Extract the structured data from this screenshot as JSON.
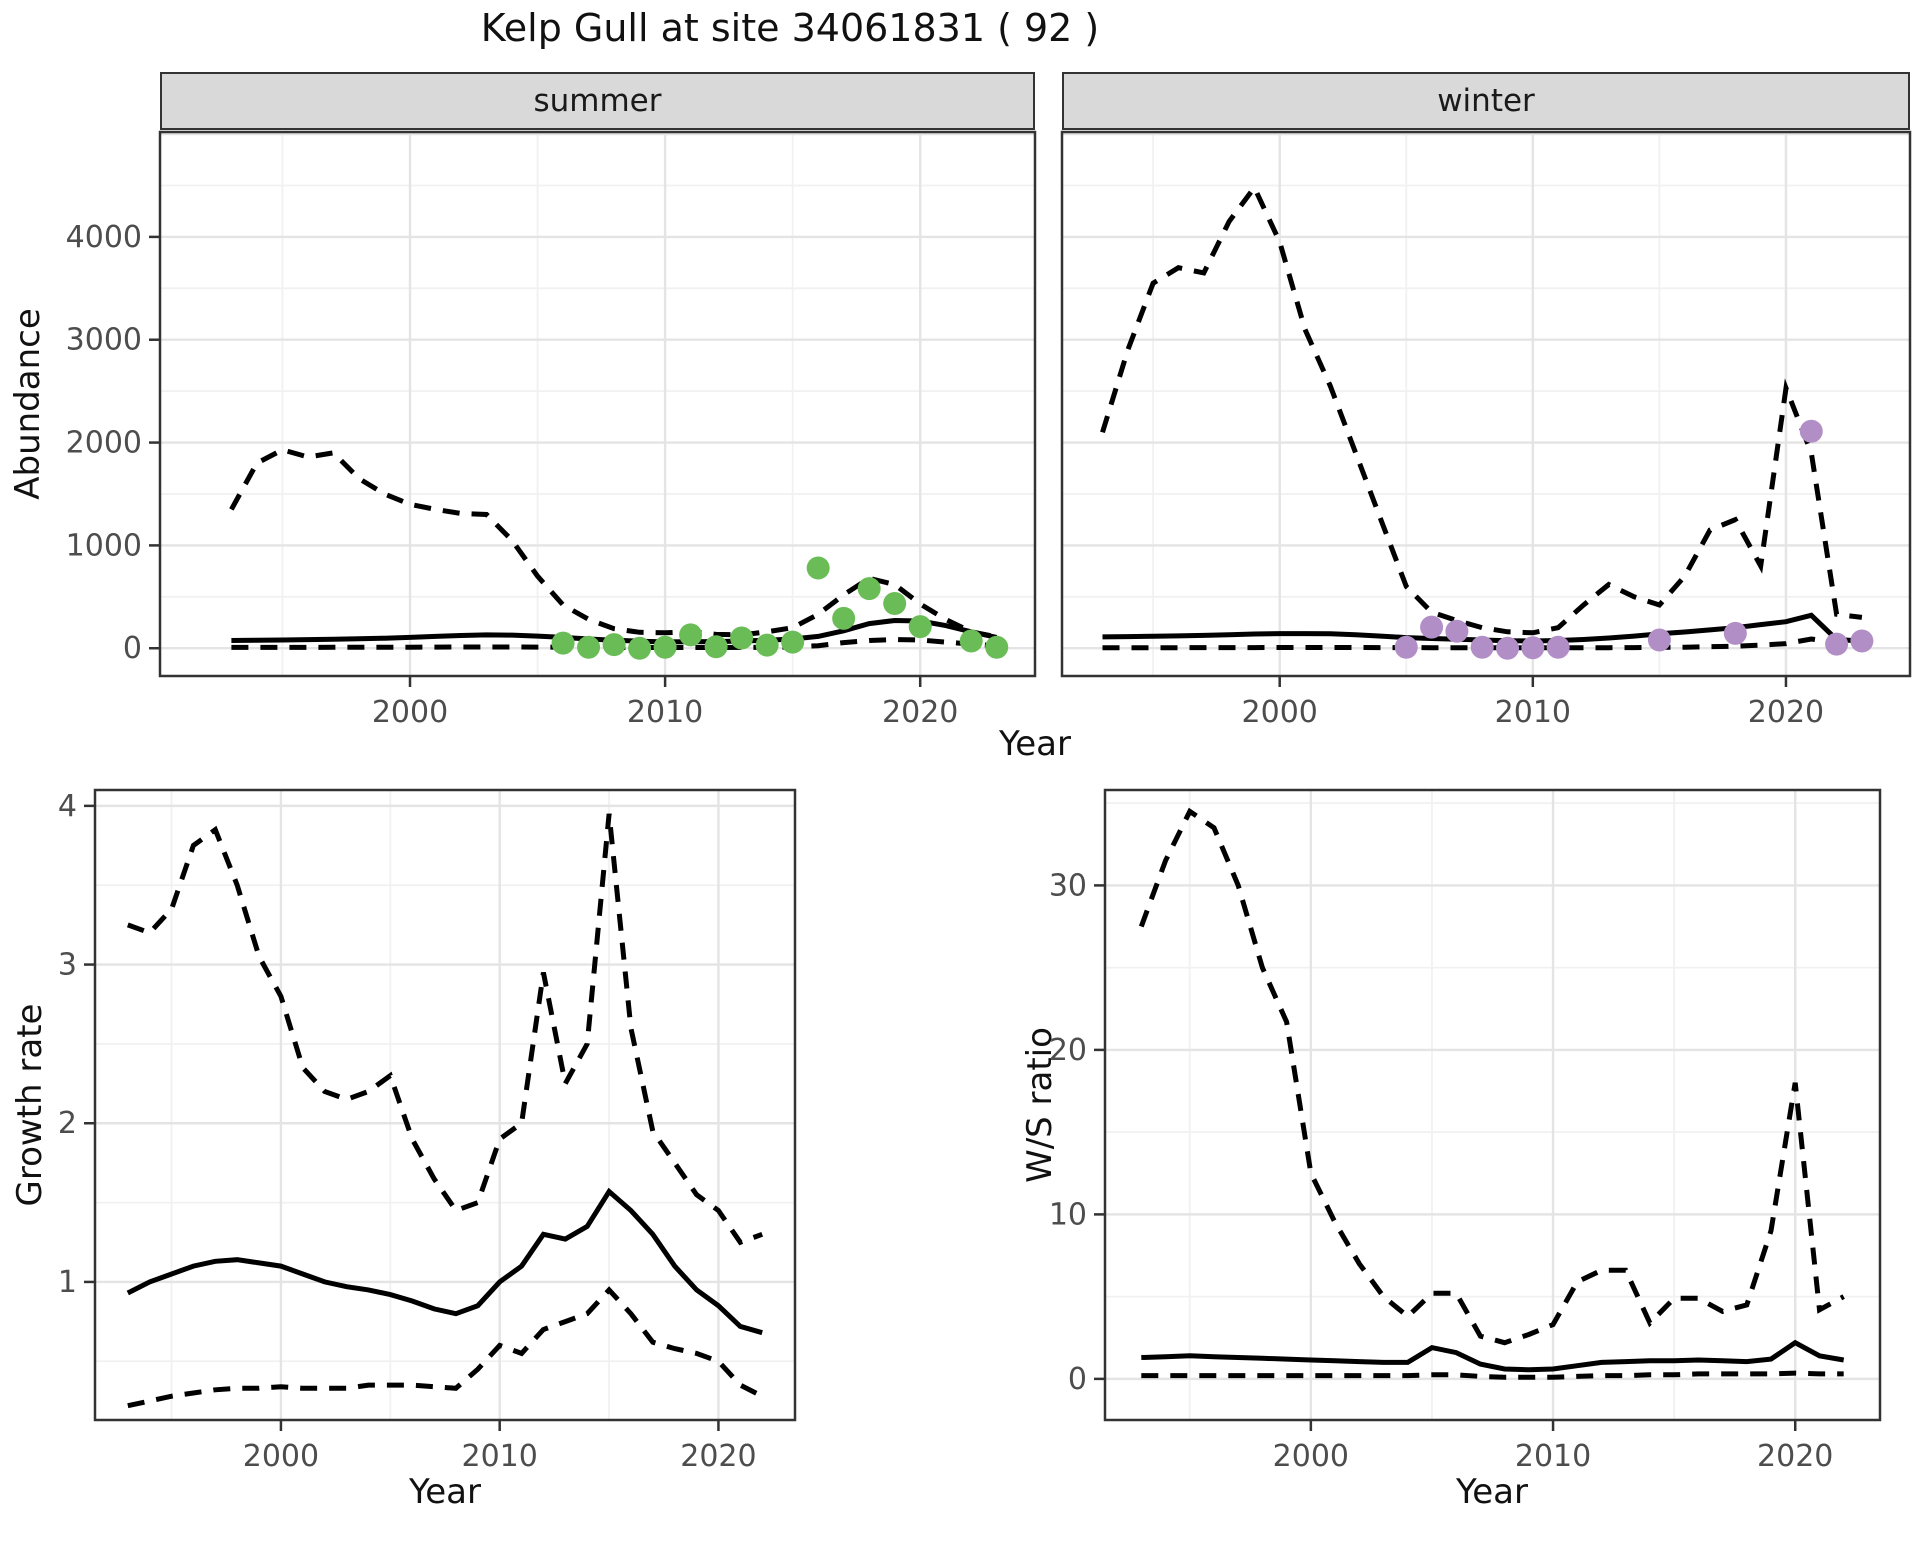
{
  "title": "Kelp Gull at site 34061831 ( 92 )",
  "colors": {
    "summer_point": "#6abd56",
    "winter_point": "#b18fc6",
    "line": "#000000",
    "strip_bg": "#d9d9d9",
    "grid_major": "#e4e4e4",
    "grid_minor": "#f1f1f1",
    "axis_text": "#4d4d4d",
    "panel_border": "#333333"
  },
  "chart_data": [
    {
      "id": "abundance_summer",
      "type": "line",
      "facet": "summer",
      "ylabel": "Abundance",
      "xlabel": "Year",
      "xlim": [
        1990.2,
        2024.5
      ],
      "ylim": [
        -270,
        5020
      ],
      "x_ticks": [
        2000,
        2010,
        2020
      ],
      "x_minor": [
        1995,
        2005,
        2015,
        2025
      ],
      "y_ticks": [
        0,
        1000,
        2000,
        3000,
        4000
      ],
      "y_grid_extra": [
        5000
      ],
      "y_minor": [
        500,
        1500,
        2500,
        3500,
        4500
      ],
      "grid": true,
      "legend": "none",
      "years": [
        1993,
        1994,
        1995,
        1996,
        1997,
        1998,
        1999,
        2000,
        2001,
        2002,
        2003,
        2004,
        2005,
        2006,
        2007,
        2008,
        2009,
        2010,
        2011,
        2012,
        2013,
        2014,
        2015,
        2016,
        2017,
        2018,
        2019,
        2020,
        2021,
        2022,
        2023
      ],
      "series": [
        {
          "name": "upper_ci",
          "style": "dashed",
          "values": [
            1350,
            1800,
            1930,
            1860,
            1900,
            1650,
            1500,
            1400,
            1350,
            1310,
            1300,
            1050,
            700,
            420,
            280,
            190,
            155,
            150,
            160,
            135,
            130,
            160,
            200,
            330,
            520,
            680,
            620,
            430,
            280,
            160,
            110
          ]
        },
        {
          "name": "median",
          "style": "solid",
          "values": [
            75,
            78,
            80,
            84,
            88,
            92,
            98,
            105,
            115,
            124,
            130,
            128,
            118,
            105,
            90,
            78,
            68,
            62,
            63,
            65,
            70,
            78,
            90,
            115,
            170,
            240,
            270,
            265,
            220,
            160,
            105
          ]
        },
        {
          "name": "lower_ci",
          "style": "dashed",
          "values": [
            8,
            8,
            8,
            8,
            9,
            9,
            10,
            10,
            11,
            12,
            12,
            12,
            11,
            10,
            9,
            8,
            7,
            7,
            7,
            7,
            8,
            9,
            12,
            25,
            55,
            75,
            85,
            80,
            60,
            40,
            25
          ]
        }
      ],
      "points": {
        "name": "observed-summer",
        "color_key": "summer_point",
        "data": [
          [
            2006,
            50
          ],
          [
            2007,
            10
          ],
          [
            2008,
            35
          ],
          [
            2009,
            0
          ],
          [
            2010,
            10
          ],
          [
            2011,
            130
          ],
          [
            2012,
            15
          ],
          [
            2013,
            100
          ],
          [
            2014,
            30
          ],
          [
            2015,
            60
          ],
          [
            2016,
            780
          ],
          [
            2017,
            290
          ],
          [
            2018,
            580
          ],
          [
            2019,
            435
          ],
          [
            2020,
            210
          ],
          [
            2022,
            70
          ],
          [
            2023,
            10
          ]
        ]
      }
    },
    {
      "id": "abundance_winter",
      "type": "line",
      "facet": "winter",
      "ylabel": "Abundance",
      "xlabel": "Year",
      "xlim": [
        1991.4,
        2024.9
      ],
      "ylim": [
        -270,
        5020
      ],
      "x_ticks": [
        2000,
        2010,
        2020
      ],
      "x_minor": [
        1995,
        2005,
        2015,
        2025
      ],
      "y_ticks": [
        0,
        1000,
        2000,
        3000,
        4000
      ],
      "y_grid_extra": [
        5000
      ],
      "y_minor": [
        500,
        1500,
        2500,
        3500,
        4500
      ],
      "grid": true,
      "legend": "none",
      "years": [
        1993,
        1994,
        1995,
        1996,
        1997,
        1998,
        1999,
        2000,
        2001,
        2002,
        2003,
        2004,
        2005,
        2006,
        2007,
        2008,
        2009,
        2010,
        2011,
        2012,
        2013,
        2014,
        2015,
        2016,
        2017,
        2018,
        2019,
        2020,
        2021,
        2022,
        2023
      ],
      "series": [
        {
          "name": "upper_ci",
          "style": "dashed",
          "values": [
            2100,
            2900,
            3550,
            3700,
            3650,
            4150,
            4480,
            3950,
            3100,
            2550,
            1900,
            1250,
            600,
            350,
            270,
            200,
            160,
            150,
            200,
            420,
            620,
            500,
            420,
            700,
            1150,
            1250,
            800,
            2530,
            1900,
            330,
            300
          ]
        },
        {
          "name": "median",
          "style": "solid",
          "values": [
            110,
            113,
            116,
            120,
            125,
            132,
            138,
            142,
            142,
            140,
            132,
            118,
            103,
            95,
            88,
            80,
            73,
            70,
            75,
            85,
            100,
            118,
            140,
            158,
            178,
            200,
            230,
            258,
            320,
            85,
            70
          ]
        },
        {
          "name": "lower_ci",
          "style": "dashed",
          "values": [
            5,
            5,
            5,
            5,
            6,
            6,
            6,
            7,
            7,
            7,
            7,
            6,
            6,
            5,
            5,
            5,
            4,
            4,
            4,
            5,
            5,
            6,
            8,
            10,
            15,
            20,
            30,
            45,
            90,
            55,
            50
          ]
        }
      ],
      "points": {
        "name": "observed-winter",
        "color_key": "winter_point",
        "data": [
          [
            2005,
            10
          ],
          [
            2006,
            205
          ],
          [
            2007,
            165
          ],
          [
            2008,
            10
          ],
          [
            2009,
            0
          ],
          [
            2010,
            5
          ],
          [
            2011,
            10
          ],
          [
            2015,
            80
          ],
          [
            2018,
            145
          ],
          [
            2021,
            2110
          ],
          [
            2022,
            40
          ],
          [
            2023,
            70
          ]
        ]
      }
    },
    {
      "id": "growth_rate",
      "type": "line",
      "facet": "",
      "ylabel": "Growth rate",
      "xlabel": "Year",
      "xlim": [
        1991.5,
        2023.5
      ],
      "ylim": [
        0.13,
        4.1
      ],
      "x_ticks": [
        2000,
        2010,
        2020
      ],
      "x_minor": [
        1995,
        2005,
        2015
      ],
      "y_ticks": [
        1,
        2,
        3,
        4
      ],
      "y_grid_extra": [],
      "y_minor": [
        0.5,
        1.5,
        2.5,
        3.5
      ],
      "grid": true,
      "legend": "none",
      "years": [
        1993,
        1994,
        1995,
        1996,
        1997,
        1998,
        1999,
        2000,
        2001,
        2002,
        2003,
        2004,
        2005,
        2006,
        2007,
        2008,
        2009,
        2010,
        2011,
        2012,
        2013,
        2014,
        2015,
        2016,
        2017,
        2018,
        2019,
        2020,
        2021,
        2022
      ],
      "series": [
        {
          "name": "upper_ci",
          "style": "dashed",
          "values": [
            3.25,
            3.2,
            3.35,
            3.75,
            3.85,
            3.5,
            3.05,
            2.8,
            2.35,
            2.2,
            2.15,
            2.2,
            2.3,
            1.9,
            1.65,
            1.45,
            1.5,
            1.9,
            2.0,
            2.95,
            2.25,
            2.5,
            3.95,
            2.6,
            1.95,
            1.75,
            1.55,
            1.45,
            1.25,
            1.3
          ]
        },
        {
          "name": "median",
          "style": "solid",
          "values": [
            0.93,
            1.0,
            1.05,
            1.1,
            1.13,
            1.14,
            1.12,
            1.1,
            1.05,
            1.0,
            0.97,
            0.95,
            0.92,
            0.88,
            0.83,
            0.8,
            0.85,
            1.0,
            1.1,
            1.3,
            1.27,
            1.35,
            1.57,
            1.45,
            1.3,
            1.1,
            0.95,
            0.85,
            0.72,
            0.68
          ]
        },
        {
          "name": "lower_ci",
          "style": "dashed",
          "values": [
            0.22,
            0.25,
            0.28,
            0.3,
            0.32,
            0.33,
            0.33,
            0.34,
            0.33,
            0.33,
            0.33,
            0.35,
            0.35,
            0.35,
            0.34,
            0.33,
            0.45,
            0.6,
            0.55,
            0.7,
            0.75,
            0.8,
            0.95,
            0.8,
            0.62,
            0.58,
            0.55,
            0.5,
            0.35,
            0.28
          ]
        }
      ],
      "points": null
    },
    {
      "id": "ws_ratio",
      "type": "line",
      "facet": "",
      "ylabel": "W/S ratio",
      "xlabel": "Year",
      "xlim": [
        1991.5,
        2023.5
      ],
      "ylim": [
        -2.5,
        35.8
      ],
      "x_ticks": [
        2000,
        2010,
        2020
      ],
      "x_minor": [
        1995,
        2005,
        2015
      ],
      "y_ticks": [
        0,
        10,
        20,
        30
      ],
      "y_grid_extra": [],
      "y_minor": [
        5,
        15,
        25,
        35
      ],
      "grid": true,
      "legend": "none",
      "years": [
        1993,
        1994,
        1995,
        1996,
        1997,
        1998,
        1999,
        2000,
        2001,
        2002,
        2003,
        2004,
        2005,
        2006,
        2007,
        2008,
        2009,
        2010,
        2011,
        2012,
        2013,
        2014,
        2015,
        2016,
        2017,
        2018,
        2019,
        2020,
        2021,
        2022
      ],
      "series": [
        {
          "name": "upper_ci",
          "style": "dashed",
          "values": [
            27.5,
            31.5,
            34.5,
            33.5,
            30.0,
            25.0,
            21.7,
            12.5,
            9.5,
            7.0,
            5.0,
            3.8,
            5.2,
            5.2,
            2.6,
            2.2,
            2.7,
            3.3,
            5.9,
            6.6,
            6.6,
            3.4,
            4.9,
            4.9,
            4.1,
            4.5,
            9.0,
            18.0,
            4.2,
            5.0
          ]
        },
        {
          "name": "median",
          "style": "solid",
          "values": [
            1.3,
            1.35,
            1.4,
            1.35,
            1.3,
            1.25,
            1.2,
            1.15,
            1.1,
            1.05,
            1.0,
            1.0,
            1.9,
            1.6,
            0.9,
            0.6,
            0.55,
            0.6,
            0.8,
            1.0,
            1.05,
            1.1,
            1.1,
            1.15,
            1.1,
            1.05,
            1.2,
            2.2,
            1.4,
            1.15
          ]
        },
        {
          "name": "lower_ci",
          "style": "dashed",
          "values": [
            0.2,
            0.2,
            0.2,
            0.2,
            0.2,
            0.2,
            0.2,
            0.2,
            0.2,
            0.2,
            0.2,
            0.2,
            0.25,
            0.25,
            0.15,
            0.1,
            0.1,
            0.1,
            0.15,
            0.2,
            0.2,
            0.25,
            0.25,
            0.3,
            0.3,
            0.3,
            0.3,
            0.35,
            0.3,
            0.3
          ]
        }
      ],
      "points": null
    }
  ]
}
